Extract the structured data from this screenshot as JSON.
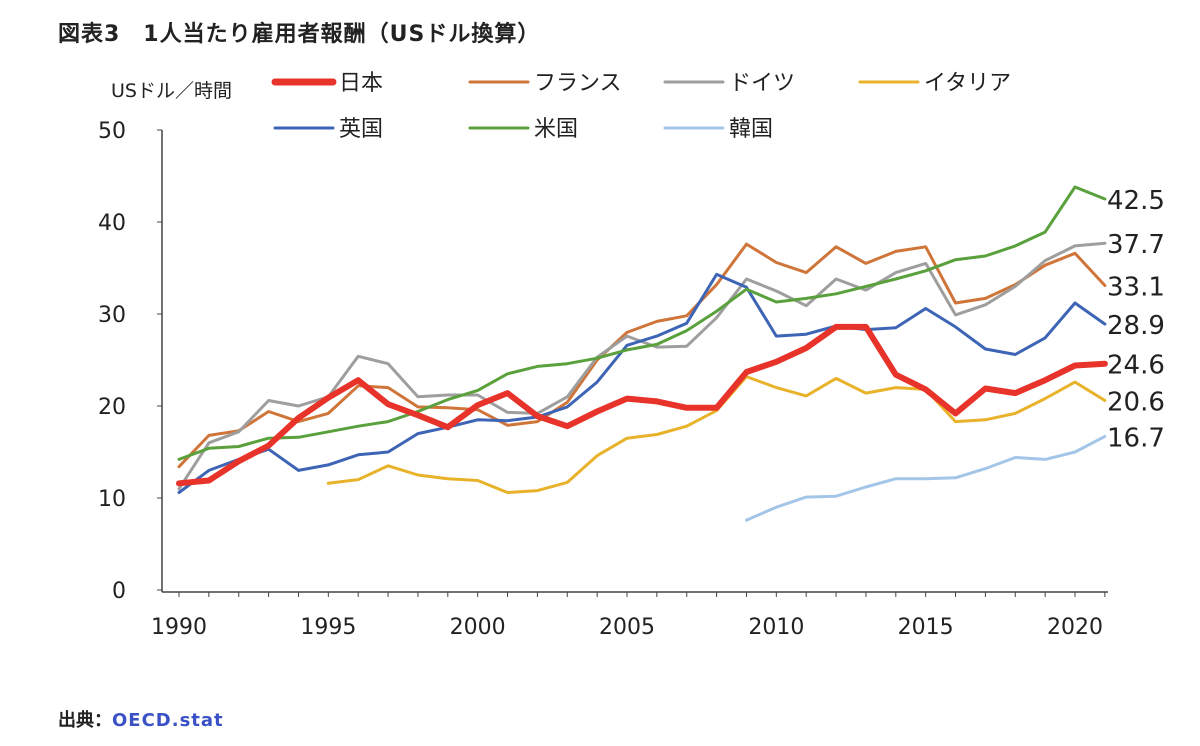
{
  "page": {
    "title": "図表3　1人当たり雇用者報酬（USドル換算）",
    "source_prefix": "出典：",
    "source_link": "OECD.stat"
  },
  "chart_data": {
    "type": "line",
    "ylabel": "USドル／時間",
    "ylim": [
      0,
      50
    ],
    "yticks": [
      0,
      10,
      20,
      30,
      40,
      50
    ],
    "xlim": [
      1990,
      2021
    ],
    "xticks": [
      1990,
      1995,
      2000,
      2005,
      2010,
      2015,
      2020
    ],
    "grid": false,
    "legend_position": "top",
    "x": [
      1990,
      1991,
      1992,
      1993,
      1994,
      1995,
      1996,
      1997,
      1998,
      1999,
      2000,
      2001,
      2002,
      2003,
      2004,
      2005,
      2006,
      2007,
      2008,
      2009,
      2010,
      2011,
      2012,
      2013,
      2014,
      2015,
      2016,
      2017,
      2018,
      2019,
      2020,
      2021
    ],
    "series": [
      {
        "name": "日本",
        "color": "#e8332a",
        "bold": true,
        "end_label": "24.6",
        "values": [
          11.6,
          11.9,
          14.0,
          15.7,
          18.7,
          20.9,
          22.8,
          20.2,
          19.0,
          17.7,
          20.1,
          21.4,
          18.9,
          17.8,
          19.4,
          20.8,
          20.5,
          19.8,
          19.8,
          23.7,
          24.8,
          26.3,
          28.6,
          28.6,
          23.4,
          21.8,
          19.2,
          21.9,
          21.4,
          22.8,
          24.4,
          24.6
        ]
      },
      {
        "name": "フランス",
        "color": "#d0753a",
        "bold": false,
        "end_label": "33.1",
        "values": [
          13.4,
          16.8,
          17.3,
          19.4,
          18.3,
          19.2,
          22.2,
          22.0,
          19.9,
          19.8,
          19.6,
          17.9,
          18.3,
          20.4,
          25.0,
          28.0,
          29.2,
          29.8,
          33.2,
          37.6,
          35.6,
          34.5,
          37.3,
          35.5,
          36.8,
          37.3,
          31.2,
          31.7,
          33.2,
          35.3,
          36.6,
          33.1
        ]
      },
      {
        "name": "ドイツ",
        "color": "#9e9e9e",
        "bold": false,
        "end_label": "37.7",
        "values": [
          11.0,
          16.0,
          17.2,
          20.6,
          20.0,
          21.0,
          25.4,
          24.6,
          21.0,
          21.2,
          21.2,
          19.3,
          19.2,
          21.0,
          25.3,
          27.6,
          26.4,
          26.5,
          29.6,
          33.8,
          32.5,
          30.9,
          33.8,
          32.6,
          34.5,
          35.5,
          29.9,
          31.0,
          33.0,
          35.8,
          37.4,
          37.7
        ]
      },
      {
        "name": "イタリア",
        "color": "#e8b22a",
        "bold": false,
        "end_label": "20.6",
        "values": [
          null,
          null,
          null,
          null,
          null,
          11.6,
          12.0,
          13.5,
          12.5,
          12.1,
          11.9,
          10.6,
          10.8,
          11.7,
          14.6,
          16.5,
          16.9,
          17.8,
          19.5,
          23.2,
          22.0,
          21.1,
          23.0,
          21.4,
          22.0,
          21.8,
          18.3,
          18.5,
          19.2,
          20.8,
          22.6,
          20.6
        ]
      },
      {
        "name": "英国",
        "color": "#3d64b5",
        "bold": false,
        "end_label": "28.9",
        "values": [
          10.6,
          13.0,
          14.2,
          15.3,
          13.0,
          13.6,
          14.7,
          15.0,
          17.0,
          17.7,
          18.5,
          18.4,
          18.8,
          19.9,
          22.6,
          26.6,
          27.6,
          29.0,
          34.3,
          32.9,
          27.6,
          27.8,
          28.7,
          28.3,
          28.5,
          30.6,
          28.6,
          26.2,
          25.6,
          27.4,
          31.2,
          28.9
        ]
      },
      {
        "name": "米国",
        "color": "#5aa03c",
        "bold": false,
        "end_label": "42.5",
        "values": [
          14.2,
          15.4,
          15.6,
          16.5,
          16.6,
          17.2,
          17.8,
          18.3,
          19.4,
          20.7,
          21.7,
          23.5,
          24.3,
          24.6,
          25.2,
          26.1,
          26.7,
          28.2,
          30.3,
          32.7,
          31.3,
          31.7,
          32.2,
          33.0,
          33.8,
          34.7,
          35.9,
          36.3,
          37.4,
          38.9,
          43.8,
          42.5
        ]
      },
      {
        "name": "韓国",
        "color": "#a3c5e8",
        "bold": false,
        "end_label": "16.7",
        "values": [
          null,
          null,
          null,
          null,
          null,
          null,
          null,
          null,
          null,
          null,
          null,
          null,
          null,
          null,
          null,
          null,
          null,
          null,
          null,
          7.6,
          9.0,
          10.1,
          10.2,
          11.2,
          12.1,
          12.1,
          12.2,
          13.2,
          14.4,
          14.2,
          15.0,
          16.7
        ]
      }
    ]
  }
}
